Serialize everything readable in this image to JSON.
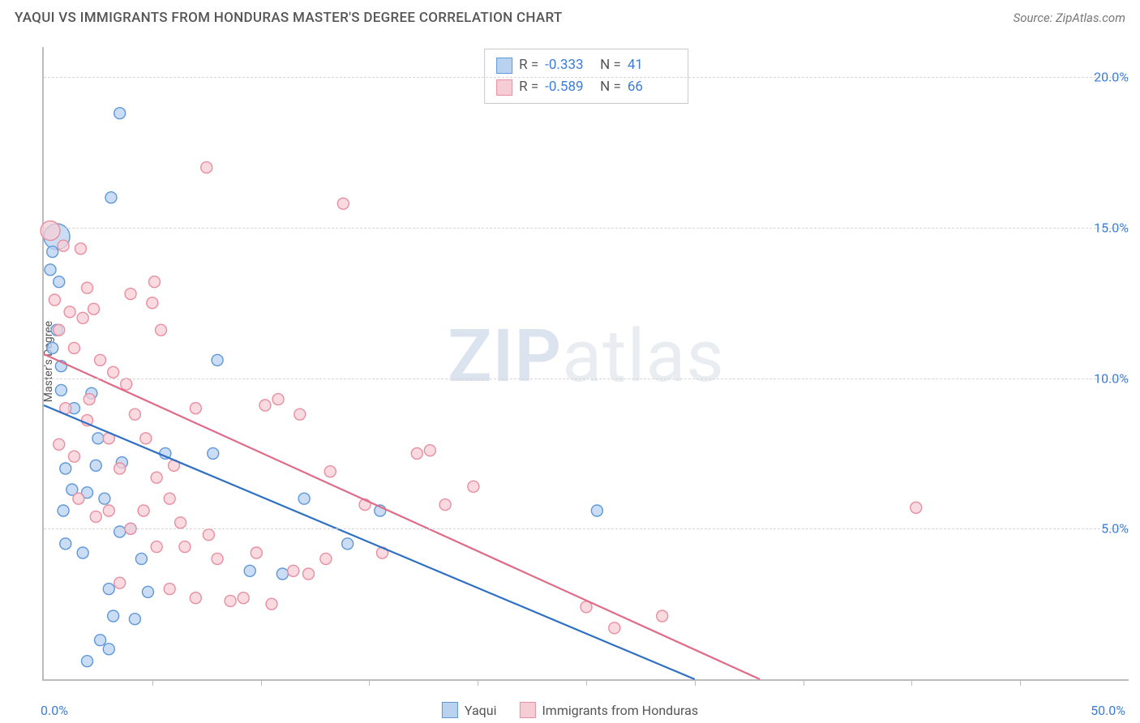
{
  "header": {
    "title": "YAQUI VS IMMIGRANTS FROM HONDURAS MASTER'S DEGREE CORRELATION CHART",
    "source": "Source: ZipAtlas.com"
  },
  "watermark": {
    "zip": "ZIP",
    "rest": "atlas"
  },
  "ylabel": "Master's Degree",
  "colors": {
    "blue_fill": "#b8d2f0",
    "blue_stroke": "#5f98d8",
    "pink_fill": "#f6cdd5",
    "pink_stroke": "#e98ea0",
    "blue_line": "#2f6fc4",
    "pink_line": "#e06a87",
    "axis_text": "#3b7dd8",
    "grid": "#d6d6d6"
  },
  "chart": {
    "type": "scatter",
    "xlim": [
      0,
      50
    ],
    "ylim": [
      0,
      21
    ],
    "yticks": [
      {
        "v": 5,
        "label": "5.0%"
      },
      {
        "v": 10,
        "label": "10.0%"
      },
      {
        "v": 15,
        "label": "15.0%"
      },
      {
        "v": 20,
        "label": "20.0%"
      }
    ],
    "xticks_minor": [
      5,
      10,
      15,
      20,
      25,
      30,
      35,
      40,
      45
    ],
    "xaxis_labels": {
      "left": "0.0%",
      "right": "50.0%"
    },
    "series": [
      {
        "key": "yaqui",
        "label": "Yaqui",
        "color_fill": "#b8d2f0",
        "color_stroke": "#5f98d8",
        "line_color": "#2f6fc4",
        "R": "-0.333",
        "N": "41",
        "trend": {
          "x1": 0,
          "y1": 9.1,
          "x2": 30,
          "y2": 0
        },
        "points": [
          [
            0.6,
            14.7,
            16
          ],
          [
            0.4,
            14.2,
            7
          ],
          [
            0.3,
            13.6,
            7
          ],
          [
            0.6,
            11.6,
            7
          ],
          [
            0.7,
            13.2,
            7
          ],
          [
            3.5,
            18.8,
            7
          ],
          [
            3.1,
            16.0,
            7
          ],
          [
            0.4,
            11.0,
            7
          ],
          [
            0.8,
            10.4,
            7
          ],
          [
            0.8,
            9.6,
            7
          ],
          [
            1.4,
            9.0,
            7
          ],
          [
            2.2,
            9.5,
            7
          ],
          [
            2.5,
            8.0,
            7
          ],
          [
            2.4,
            7.1,
            7
          ],
          [
            3.6,
            7.2,
            7
          ],
          [
            1.0,
            7.0,
            7
          ],
          [
            1.3,
            6.3,
            7
          ],
          [
            0.9,
            5.6,
            7
          ],
          [
            2.0,
            6.2,
            7
          ],
          [
            2.8,
            6.0,
            7
          ],
          [
            3.5,
            4.9,
            7
          ],
          [
            4.0,
            5.0,
            7
          ],
          [
            4.5,
            4.0,
            7
          ],
          [
            1.0,
            4.5,
            7
          ],
          [
            1.8,
            4.2,
            7
          ],
          [
            2.0,
            0.6,
            7
          ],
          [
            3.0,
            1.0,
            7
          ],
          [
            3.2,
            2.1,
            7
          ],
          [
            4.8,
            2.9,
            7
          ],
          [
            5.6,
            7.5,
            7
          ],
          [
            7.8,
            7.5,
            7
          ],
          [
            8.0,
            10.6,
            7
          ],
          [
            9.5,
            3.6,
            7
          ],
          [
            11.0,
            3.5,
            7
          ],
          [
            12.0,
            6.0,
            7
          ],
          [
            15.5,
            5.6,
            7
          ],
          [
            14.0,
            4.5,
            7
          ],
          [
            25.5,
            5.6,
            7
          ],
          [
            2.6,
            1.3,
            7
          ],
          [
            3.0,
            3.0,
            7
          ],
          [
            4.2,
            2.0,
            7
          ]
        ]
      },
      {
        "key": "honduras",
        "label": "Immigrants from Honduras",
        "color_fill": "#f6cdd5",
        "color_stroke": "#e98ea0",
        "line_color": "#e06a87",
        "R": "-0.589",
        "N": "66",
        "trend": {
          "x1": 0,
          "y1": 10.8,
          "x2": 33,
          "y2": 0
        },
        "points": [
          [
            0.3,
            14.9,
            12
          ],
          [
            0.9,
            14.4,
            7
          ],
          [
            1.7,
            14.3,
            7
          ],
          [
            2.0,
            13.0,
            7
          ],
          [
            0.5,
            12.6,
            7
          ],
          [
            1.2,
            12.2,
            7
          ],
          [
            1.8,
            12.0,
            7
          ],
          [
            2.3,
            12.3,
            7
          ],
          [
            0.7,
            11.6,
            7
          ],
          [
            1.4,
            11.0,
            7
          ],
          [
            2.6,
            10.6,
            7
          ],
          [
            3.2,
            10.2,
            7
          ],
          [
            4.0,
            12.8,
            7
          ],
          [
            5.0,
            12.5,
            7
          ],
          [
            5.1,
            13.2,
            7
          ],
          [
            5.4,
            11.6,
            7
          ],
          [
            3.8,
            9.8,
            7
          ],
          [
            2.1,
            9.3,
            7
          ],
          [
            1.0,
            9.0,
            7
          ],
          [
            0.7,
            7.8,
            7
          ],
          [
            1.4,
            7.4,
            7
          ],
          [
            2.0,
            8.6,
            7
          ],
          [
            3.0,
            8.0,
            7
          ],
          [
            3.5,
            7.0,
            7
          ],
          [
            4.2,
            8.8,
            7
          ],
          [
            4.7,
            8.0,
            7
          ],
          [
            5.2,
            6.7,
            7
          ],
          [
            5.8,
            6.0,
            7
          ],
          [
            6.3,
            5.2,
            7
          ],
          [
            7.0,
            9.0,
            7
          ],
          [
            7.5,
            17.0,
            7
          ],
          [
            10.2,
            9.1,
            7
          ],
          [
            10.8,
            9.3,
            7
          ],
          [
            11.8,
            8.8,
            7
          ],
          [
            13.2,
            6.9,
            7
          ],
          [
            13.8,
            15.8,
            7
          ],
          [
            14.8,
            5.8,
            7
          ],
          [
            15.6,
            4.2,
            7
          ],
          [
            17.2,
            7.5,
            7
          ],
          [
            17.8,
            7.6,
            7
          ],
          [
            18.5,
            5.8,
            7
          ],
          [
            19.8,
            6.4,
            7
          ],
          [
            8.0,
            4.0,
            7
          ],
          [
            8.6,
            2.6,
            7
          ],
          [
            9.2,
            2.7,
            7
          ],
          [
            9.8,
            4.2,
            7
          ],
          [
            10.5,
            2.5,
            7
          ],
          [
            11.5,
            3.6,
            7
          ],
          [
            12.2,
            3.5,
            7
          ],
          [
            13.0,
            4.0,
            7
          ],
          [
            4.0,
            5.0,
            7
          ],
          [
            4.6,
            5.6,
            7
          ],
          [
            5.2,
            4.4,
            7
          ],
          [
            5.8,
            3.0,
            7
          ],
          [
            6.5,
            4.4,
            7
          ],
          [
            7.0,
            2.7,
            7
          ],
          [
            7.6,
            4.8,
            7
          ],
          [
            3.0,
            5.6,
            7
          ],
          [
            2.4,
            5.4,
            7
          ],
          [
            1.6,
            6.0,
            7
          ],
          [
            25.0,
            2.4,
            7
          ],
          [
            26.3,
            1.7,
            7
          ],
          [
            28.5,
            2.1,
            7
          ],
          [
            40.2,
            5.7,
            7
          ],
          [
            3.5,
            3.2,
            7
          ],
          [
            6.0,
            7.1,
            7
          ]
        ]
      }
    ]
  }
}
